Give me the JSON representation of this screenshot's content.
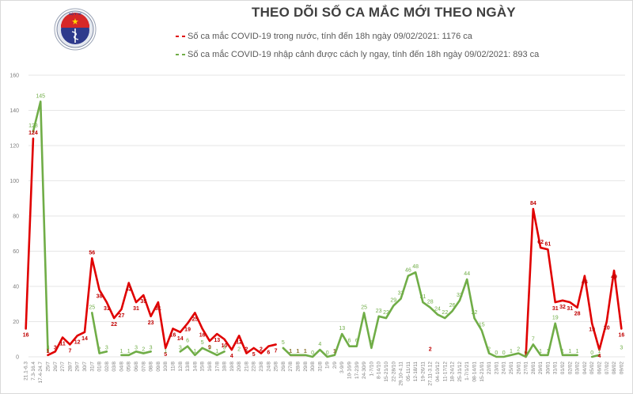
{
  "header": {
    "title": "THEO DÕI SỐ CA MẮC MỚI THEO NGÀY",
    "logo_text_top": "BỘ Y TẾ",
    "logo_text_bottom": "MINISTRY OF HEALTH"
  },
  "legend": {
    "domestic": "Số ca mắc COVID-19 trong nước, tính đến 18h ngày 09/02/2021: 1176 ca",
    "imported": "Số ca mắc COVID-19 nhập cảnh được cách ly ngay, tính đến 18h ngày 09/02/2021: 893 ca"
  },
  "colors": {
    "domestic": "#e00000",
    "domestic_label": "#c00000",
    "imported": "#70ad47",
    "grid": "#e6e6e6",
    "axis_text": "#7f7f7f"
  },
  "chart_data": {
    "type": "line",
    "title": "THEO DÕI SỐ CA MẮC MỚI THEO NGÀY",
    "xlabel": "",
    "ylabel": "",
    "ylim": [
      0,
      160
    ],
    "yticks": [
      0,
      20,
      40,
      60,
      80,
      100,
      120,
      140,
      160
    ],
    "grid": true,
    "legend_position": "top",
    "categories": [
      "21.1-6.3",
      "7.3-16.4",
      "17.4-24.7",
      "25/7",
      "26/7",
      "27/7",
      "28/7",
      "29/7",
      "30/7",
      "31/7",
      "01/8",
      "02/8",
      "03/8",
      "04/8",
      "05/8",
      "06/8",
      "07/8",
      "08/8",
      "09/8",
      "10/8",
      "11/8",
      "12/8",
      "13/8",
      "14/8",
      "15/8",
      "16/8",
      "17/8",
      "18/8",
      "19/8",
      "20/8",
      "21/8",
      "22/8",
      "23/8",
      "24/8",
      "25/8",
      "26/8",
      "27/8",
      "28/8",
      "29/8",
      "30/8",
      "31/8",
      "1/9",
      "2/9",
      "3-9/9",
      "10-16/9",
      "17-23/9",
      "24-30/9",
      "1-7/10",
      "8-14/10",
      "15-21/10",
      "22-28/10",
      "29.10-4.11",
      "05-11/11",
      "12-18/11",
      "19-26/11",
      "27.11-3.12",
      "04-10/12",
      "11-17/12",
      "18-24/12",
      "25-31/12",
      "1-7/1/21",
      "08-14/01",
      "15-21/01",
      "22/01",
      "23/01",
      "24/01",
      "25/01",
      "26/01",
      "27/01",
      "28/01",
      "29/01",
      "30/01",
      "31/01",
      "01/02",
      "02/02",
      "03/02",
      "04/02",
      "05/02",
      "06/02",
      "07/02",
      "08/02",
      "09/02"
    ],
    "series": [
      {
        "name": "Số ca mắc COVID-19 trong nước, tính đến 18h ngày 09/02/2021: 1176 ca",
        "color": "#e00000",
        "values": [
          16,
          124,
          null,
          1,
          3,
          11,
          7,
          12,
          14,
          56,
          38,
          31,
          22,
          27,
          42,
          31,
          35,
          23,
          31,
          5,
          16,
          14,
          19,
          25,
          16,
          9,
          13,
          10,
          4,
          12,
          2,
          5,
          2,
          6,
          7,
          null,
          1,
          1,
          1,
          null,
          null,
          null,
          1,
          null,
          null,
          null,
          null,
          null,
          null,
          null,
          null,
          null,
          null,
          null,
          null,
          2,
          null,
          null,
          null,
          null,
          null,
          null,
          null,
          null,
          null,
          null,
          null,
          null,
          0,
          84,
          62,
          61,
          31,
          32,
          31,
          28,
          46,
          19,
          4,
          20,
          49,
          16
        ]
      },
      {
        "name": "Số ca mắc COVID-19 nhập cảnh được cách ly ngay, tính đến 18h ngày 09/02/2021: 893 ca",
        "color": "#70ad47",
        "values": [
          null,
          128,
          145,
          3,
          null,
          null,
          null,
          null,
          null,
          25,
          2,
          3,
          null,
          1,
          1,
          3,
          2,
          3,
          null,
          1,
          null,
          3,
          6,
          1,
          5,
          3,
          1,
          3,
          null,
          2,
          null,
          null,
          null,
          null,
          null,
          5,
          1,
          1,
          1,
          0,
          4,
          0,
          1,
          13,
          6,
          6,
          25,
          5,
          23,
          22,
          29,
          33,
          46,
          48,
          31,
          28,
          24,
          22,
          26,
          32,
          44,
          22,
          15,
          2,
          0,
          0,
          1,
          2,
          0,
          7,
          1,
          1,
          19,
          1,
          1,
          1,
          null,
          0,
          1,
          null,
          null,
          3
        ]
      }
    ]
  }
}
